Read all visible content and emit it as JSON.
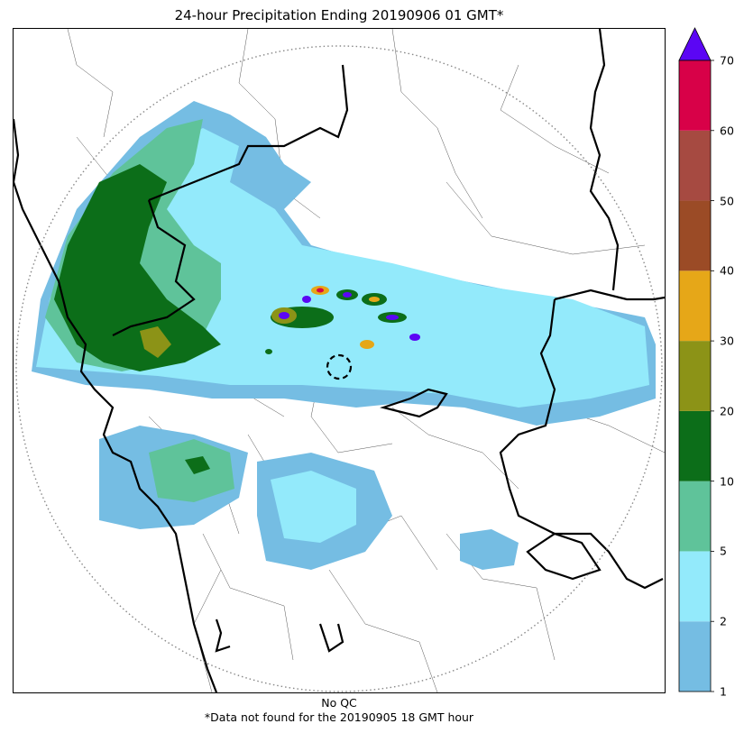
{
  "title": "24-hour Precipitation Ending 20190906 01 GMT*",
  "footer": {
    "qc_label": "No QC",
    "note": "*Data not found for the 20190905 18 GMT hour"
  },
  "colorbar": {
    "ticks": [
      "1",
      "2",
      "5",
      "10",
      "20",
      "30",
      "40",
      "50",
      "60",
      "70"
    ],
    "band_colors": [
      "#75bde3",
      "#93eafb",
      "#5fc39a",
      "#0c6e19",
      "#8c9317",
      "#e6a718",
      "#9b4b26",
      "#a64a41",
      "#d80148"
    ],
    "extend_color": "#5b06f4"
  },
  "map": {
    "range_ring_color": "#888888",
    "state_boundary_color": "#000000",
    "district_boundary_color": "#555555"
  }
}
